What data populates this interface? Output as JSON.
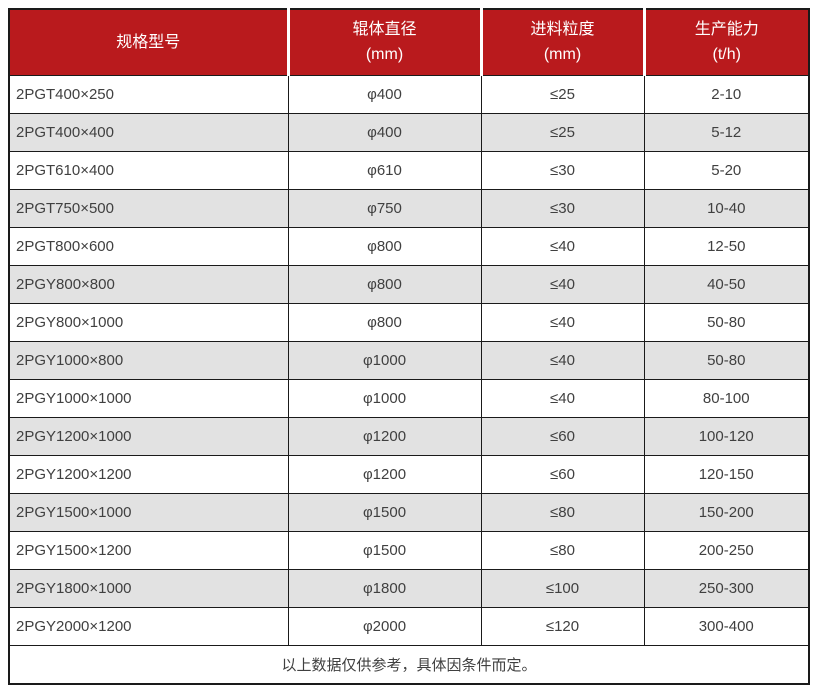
{
  "table": {
    "colors": {
      "header_bg": "#b91a1d",
      "header_text": "#ffffff",
      "row_alt_bg": "#e2e2e2",
      "border": "#1a1a1a",
      "body_text": "#404040"
    },
    "columns": [
      {
        "title": "规格型号",
        "unit": ""
      },
      {
        "title": "辊体直径",
        "unit": "(mm)"
      },
      {
        "title": "进料粒度",
        "unit": "(mm)"
      },
      {
        "title": "生产能力",
        "unit": "(t/h)"
      }
    ],
    "rows": [
      [
        "2PGT400×250",
        "φ400",
        "≤25",
        "2-10"
      ],
      [
        "2PGT400×400",
        "φ400",
        "≤25",
        "5-12"
      ],
      [
        "2PGT610×400",
        "φ610",
        "≤30",
        "5-20"
      ],
      [
        "2PGT750×500",
        "φ750",
        "≤30",
        "10-40"
      ],
      [
        "2PGT800×600",
        "φ800",
        "≤40",
        "12-50"
      ],
      [
        "2PGY800×800",
        "φ800",
        "≤40",
        "40-50"
      ],
      [
        "2PGY800×1000",
        "φ800",
        "≤40",
        "50-80"
      ],
      [
        "2PGY1000×800",
        "φ1000",
        "≤40",
        "50-80"
      ],
      [
        "2PGY1000×1000",
        "φ1000",
        "≤40",
        "80-100"
      ],
      [
        "2PGY1200×1000",
        "φ1200",
        "≤60",
        "100-120"
      ],
      [
        "2PGY1200×1200",
        "φ1200",
        "≤60",
        "120-150"
      ],
      [
        "2PGY1500×1000",
        "φ1500",
        "≤80",
        "150-200"
      ],
      [
        "2PGY1500×1200",
        "φ1500",
        "≤80",
        "200-250"
      ],
      [
        "2PGY1800×1000",
        "φ1800",
        "≤100",
        "250-300"
      ],
      [
        "2PGY2000×1200",
        "φ2000",
        "≤120",
        "300-400"
      ]
    ],
    "footer_note": "以上数据仅供参考，具体因条件而定。"
  }
}
